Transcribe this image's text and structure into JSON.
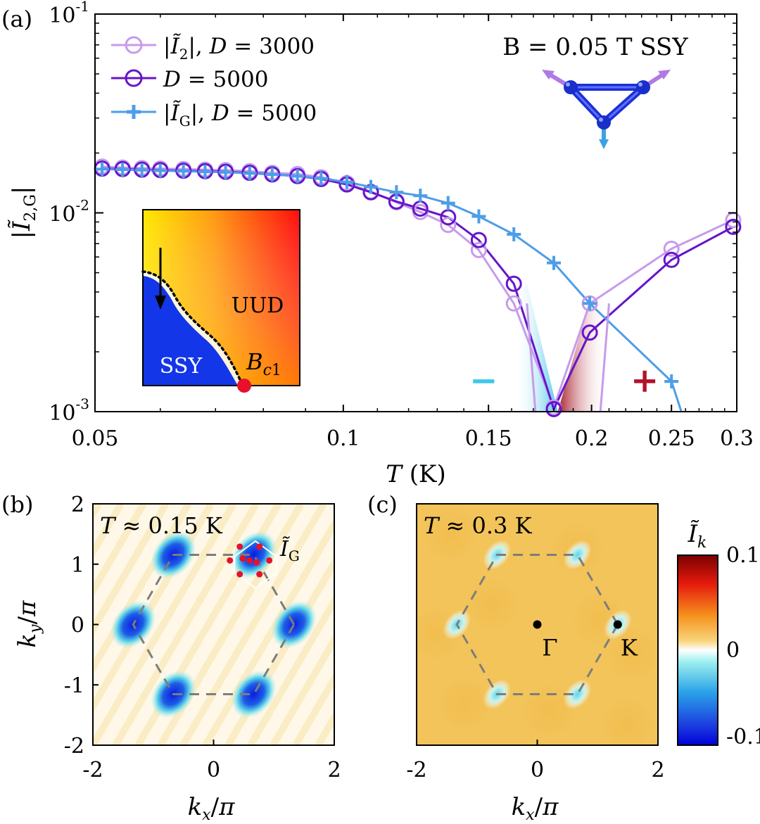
{
  "chart_data": [
    {
      "type": "line",
      "panel_label": "(a)",
      "xlabel": "T (K)",
      "ylabel": "|Ĩ2,G|",
      "xscale": "log",
      "yscale": "log",
      "xlim": [
        0.05,
        0.3
      ],
      "ylim": [
        0.001,
        0.1
      ],
      "x_ticks": [
        {
          "v": 0.05,
          "label": "0.05"
        },
        {
          "v": 0.1,
          "label": "0.1"
        },
        {
          "v": 0.15,
          "label": "0.15"
        },
        {
          "v": 0.2,
          "label": "0.2"
        },
        {
          "v": 0.25,
          "label": "0.25"
        },
        {
          "v": 0.3,
          "label": "0.3"
        }
      ],
      "y_ticks": [
        {
          "v": 0.001,
          "base": "10",
          "exp": "-3"
        },
        {
          "v": 0.01,
          "base": "10",
          "exp": "-2"
        },
        {
          "v": 0.1,
          "base": "10",
          "exp": "-1"
        }
      ],
      "annotation": "B = 0.05 T  SSY",
      "sign_labels": [
        {
          "text": "−",
          "x": 0.148,
          "y": 0.00142,
          "color": "#3cc8ea"
        },
        {
          "text": "+",
          "x": 0.232,
          "y": 0.00142,
          "color": "#b3122a"
        }
      ],
      "series": [
        {
          "name": "|Ĩ2|, D = 3000",
          "color": "#c79bea",
          "marker": "circle",
          "x": [
            0.051,
            0.054,
            0.057,
            0.06,
            0.064,
            0.068,
            0.072,
            0.077,
            0.082,
            0.088,
            0.094,
            0.101,
            0.108,
            0.116,
            0.124,
            0.134,
            0.146,
            0.161,
            0.18,
            0.199,
            0.25,
            0.297
          ],
          "y": [
            0.0171,
            0.0169,
            0.0168,
            0.0167,
            0.0166,
            0.0165,
            0.0164,
            0.0162,
            0.0159,
            0.0157,
            0.0151,
            0.0141,
            0.0128,
            0.0113,
            0.0101,
            0.0087,
            0.0065,
            0.0035,
            0.00105,
            0.0035,
            0.0066,
            0.0092
          ]
        },
        {
          "name": "D = 5000",
          "color": "#6515c9",
          "marker": "circle",
          "x": [
            0.051,
            0.054,
            0.057,
            0.06,
            0.064,
            0.068,
            0.072,
            0.077,
            0.082,
            0.088,
            0.094,
            0.101,
            0.108,
            0.116,
            0.124,
            0.134,
            0.146,
            0.161,
            0.18,
            0.199,
            0.25,
            0.297
          ],
          "y": [
            0.0167,
            0.0166,
            0.0165,
            0.0164,
            0.0163,
            0.0162,
            0.0161,
            0.0159,
            0.0156,
            0.0153,
            0.0148,
            0.0139,
            0.0127,
            0.0114,
            0.0105,
            0.0095,
            0.0073,
            0.0044,
            0.00103,
            0.0025,
            0.0058,
            0.0085
          ]
        },
        {
          "name": "|ĨG|,  D = 5000",
          "color": "#4d9ee8",
          "marker": "plus",
          "x": [
            0.051,
            0.054,
            0.057,
            0.06,
            0.064,
            0.068,
            0.072,
            0.077,
            0.082,
            0.088,
            0.094,
            0.101,
            0.108,
            0.116,
            0.124,
            0.134,
            0.146,
            0.161,
            0.18,
            0.199,
            0.25
          ],
          "y": [
            0.0166,
            0.0165,
            0.0164,
            0.0163,
            0.0162,
            0.0161,
            0.016,
            0.0158,
            0.0156,
            0.0153,
            0.0149,
            0.0143,
            0.0135,
            0.0127,
            0.0122,
            0.0112,
            0.0096,
            0.0078,
            0.0056,
            0.0035,
            0.00142
          ]
        }
      ],
      "inset": {
        "labels": [
          "UUD",
          "SSY",
          "B_c1"
        ],
        "region_colors": [
          "#ff0e0e",
          "#ffd300",
          "#1236e8"
        ]
      }
    },
    {
      "type": "heatmap",
      "panel_label": "(b)",
      "title": "T ≈ 0.15 K",
      "xlabel": "kx/π",
      "ylabel": "ky/π",
      "xlim": [
        -2,
        2
      ],
      "ylim": [
        -2,
        2
      ],
      "x_ticks": [
        "-2",
        "0",
        "2"
      ],
      "y_ticks": [
        "2",
        "1",
        "0",
        "-1",
        "-2"
      ],
      "marked_label": "ĨG",
      "features": "negative (blue) lobes at the six Brillouin-zone corners"
    },
    {
      "type": "heatmap",
      "panel_label": "(c)",
      "title": "T ≈ 0.3 K",
      "xlabel": "kx/π",
      "ylabel": "",
      "xlim": [
        -2,
        2
      ],
      "ylim": [
        -2,
        2
      ],
      "x_ticks": [
        "-2",
        "0",
        "2"
      ],
      "points": [
        {
          "label": "Γ",
          "x": 0,
          "y": 0
        },
        {
          "label": "K",
          "x": 1.333,
          "y": 0
        }
      ],
      "colorbar": {
        "label": "Ĩk",
        "min": -0.1,
        "max": 0.1,
        "ticks": [
          "0.1",
          "0",
          "-0.1"
        ]
      }
    }
  ]
}
